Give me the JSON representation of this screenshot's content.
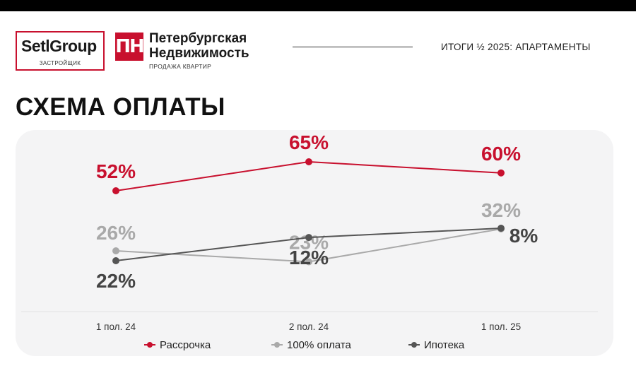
{
  "header": {
    "logo_setl": {
      "name": "SetlGroup",
      "sub": "ЗАСТРОЙЩИК"
    },
    "logo_pn": {
      "mark": "ПН",
      "line1": "Петербургская",
      "line2": "Недвижимость",
      "sub": "ПРОДАЖА КВАРТИР"
    },
    "right_text": "ИТОГИ ½ 2025: АПАРТАМЕНТЫ"
  },
  "page_title": "СХЕМА ОПЛАТЫ",
  "colors": {
    "accent": "#c8102e",
    "red": "#c8102e",
    "light_gray": "#a9a9a9",
    "dark_gray": "#555555"
  },
  "chart_data": {
    "type": "line",
    "categories": [
      "1 пол. 24",
      "2 пол. 24",
      "1 пол. 25"
    ],
    "series": [
      {
        "name": "Рассрочка",
        "values": [
          52,
          65,
          60
        ],
        "labels": [
          "52%",
          "65%",
          "60%"
        ],
        "color": "#c8102e",
        "label_color": "#c8102e"
      },
      {
        "name": "100% оплата",
        "values": [
          26,
          23,
          32
        ],
        "labels": [
          "26%",
          "23%",
          "32%"
        ],
        "color": "#a9a9a9",
        "label_color": "#a9a9a9"
      },
      {
        "name": "Ипотека",
        "values": [
          22,
          12,
          8
        ],
        "labels": [
          "22%",
          "12%",
          "8%"
        ],
        "color": "#555555",
        "label_color": "#444444"
      }
    ],
    "legend_position": "bottom",
    "grid": false
  }
}
